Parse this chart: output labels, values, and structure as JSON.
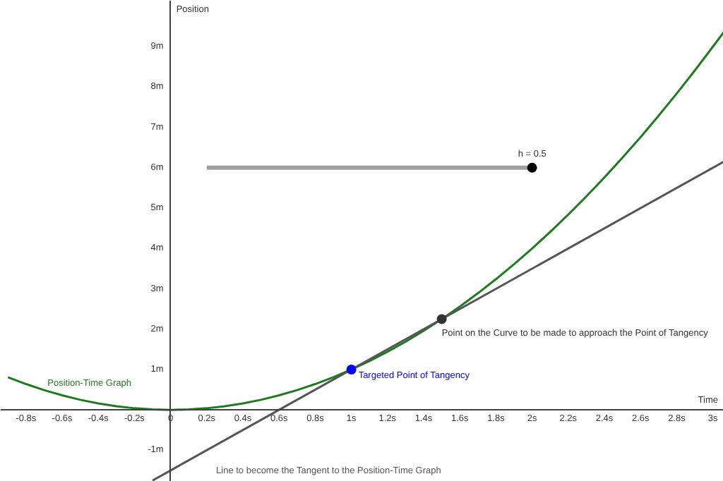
{
  "chart_data": {
    "type": "line",
    "xlabel": "Time",
    "ylabel": "Position",
    "xlim": [
      -0.94,
      3.06
    ],
    "ylim": [
      -1.78,
      10.14
    ],
    "xticks": [
      {
        "value": -0.8,
        "label": "-0.8s"
      },
      {
        "value": -0.6,
        "label": "-0.6s"
      },
      {
        "value": -0.4,
        "label": "-0.4s"
      },
      {
        "value": -0.2,
        "label": "-0.2s"
      },
      0,
      {
        "value": 0.2,
        "label": "0.2s"
      },
      {
        "value": 0.4,
        "label": "0.4s"
      },
      {
        "value": 0.6,
        "label": "0.6s"
      },
      {
        "value": 0.8,
        "label": "0.8s"
      },
      {
        "value": 1,
        "label": "1s"
      },
      {
        "value": 1.2,
        "label": "1.2s"
      },
      {
        "value": 1.4,
        "label": "1.4s"
      },
      {
        "value": 1.6,
        "label": "1.6s"
      },
      {
        "value": 1.8,
        "label": "1.8s"
      },
      {
        "value": 2,
        "label": "2s"
      },
      {
        "value": 2.2,
        "label": "2.2s"
      },
      {
        "value": 2.4,
        "label": "2.4s"
      },
      {
        "value": 2.6,
        "label": "2.6s"
      },
      {
        "value": 2.8,
        "label": "2.8s"
      },
      {
        "value": 3,
        "label": "3s"
      }
    ],
    "yticks": [
      {
        "value": -1,
        "label": "-1m"
      },
      {
        "value": 1,
        "label": "1m"
      },
      {
        "value": 2,
        "label": "2m"
      },
      {
        "value": 3,
        "label": "3m"
      },
      {
        "value": 4,
        "label": "4m"
      },
      {
        "value": 5,
        "label": "5m"
      },
      {
        "value": 6,
        "label": "6m"
      },
      {
        "value": 7,
        "label": "7m"
      },
      {
        "value": 8,
        "label": "8m"
      },
      {
        "value": 9,
        "label": "9m"
      }
    ],
    "grid": false,
    "series": [
      {
        "name": "Position-Time Graph",
        "color": "#1e7b1e",
        "x": [
          -0.9,
          -0.8,
          -0.7,
          -0.6,
          -0.5,
          -0.4,
          -0.3,
          -0.2,
          -0.1,
          0,
          0.1,
          0.2,
          0.3,
          0.4,
          0.5,
          0.6,
          0.7,
          0.8,
          0.9,
          1,
          1.1,
          1.2,
          1.3,
          1.4,
          1.5,
          1.6,
          1.7,
          1.8,
          1.9,
          2,
          2.1,
          2.2,
          2.3,
          2.4,
          2.5,
          2.6,
          2.7,
          2.8,
          2.9,
          3,
          3.06
        ],
        "values": [
          0.81,
          0.64,
          0.49,
          0.36,
          0.25,
          0.16,
          0.09,
          0.04,
          0.01,
          0,
          0.01,
          0.04,
          0.09,
          0.16,
          0.25,
          0.36,
          0.49,
          0.64,
          0.81,
          1,
          1.21,
          1.44,
          1.69,
          1.96,
          2.25,
          2.56,
          2.89,
          3.24,
          3.61,
          4,
          4.41,
          4.84,
          5.29,
          5.76,
          6.25,
          6.76,
          7.29,
          7.84,
          8.41,
          9,
          9.36
        ]
      },
      {
        "name": "Line to become the Tangent to the Position-Time Graph",
        "color": "#555555",
        "x": [
          -0.1,
          3.06
        ],
        "values": [
          -1.75,
          6.15
        ]
      },
      {
        "color": "#a0a0a0",
        "x": [
          0.2,
          2.0
        ],
        "values": [
          6,
          6
        ]
      },
      {
        "type": "scatter",
        "color": "#000000",
        "x": [
          2.0
        ],
        "values": [
          6
        ]
      },
      {
        "type": "scatter",
        "color": "#0000ff",
        "x": [
          1
        ],
        "values": [
          1
        ]
      },
      {
        "type": "scatter",
        "color": "#333333",
        "x": [
          1.5
        ],
        "values": [
          2.25
        ]
      }
    ],
    "annotations": [
      {
        "text": "h = 0.5",
        "x": 2.0,
        "y": 6
      },
      {
        "text": "Targeted Point of Tangency",
        "x": 1,
        "y": 1
      },
      {
        "text": "Point on the Curve to be made to approach the Point of Tangency",
        "x": 1.5,
        "y": 2.25
      }
    ]
  }
}
